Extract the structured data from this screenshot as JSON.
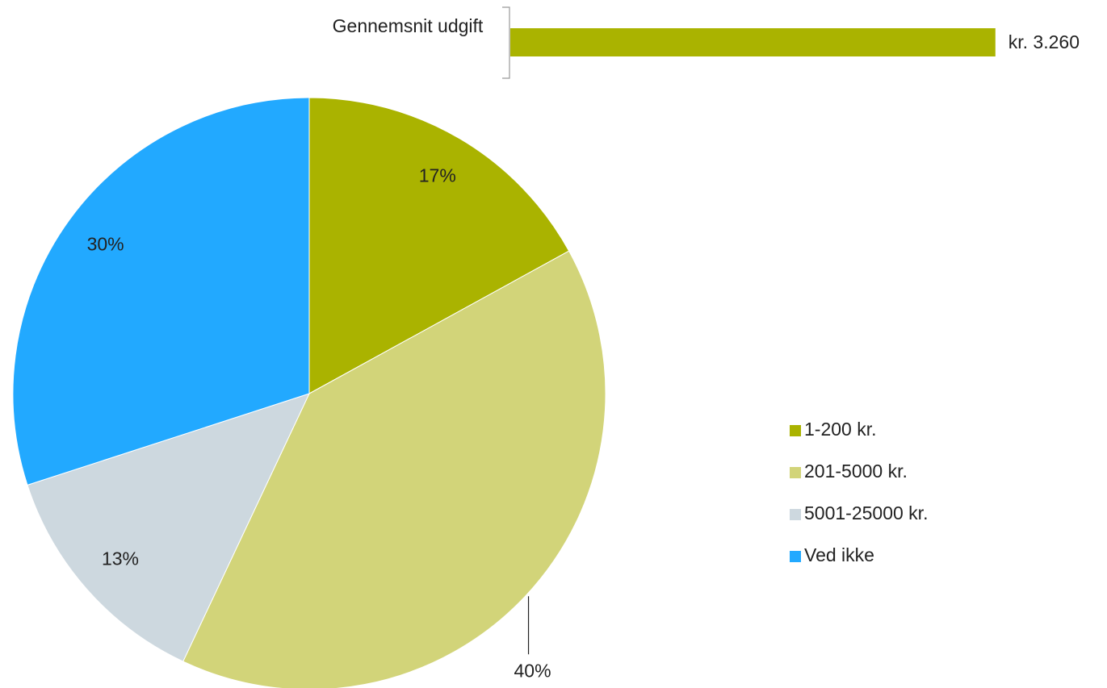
{
  "chart_data": [
    {
      "type": "pie",
      "categories": [
        "1-200 kr.",
        "201-5000 kr.",
        "5001-25000 kr.",
        "Ved ikke"
      ],
      "values": [
        17,
        40,
        13,
        30
      ],
      "value_labels": [
        "17%",
        "40%",
        "13%",
        "30%"
      ],
      "colors": [
        "#aab300",
        "#d2d479",
        "#cdd8df",
        "#22a9ff"
      ],
      "legend": "right"
    },
    {
      "type": "bar",
      "orientation": "horizontal",
      "categories": [
        "Gennemsnit udgift"
      ],
      "values": [
        3260
      ],
      "value_labels": [
        "kr. 3.260"
      ],
      "color": "#aab300",
      "xlim": [
        0,
        3500
      ]
    }
  ]
}
